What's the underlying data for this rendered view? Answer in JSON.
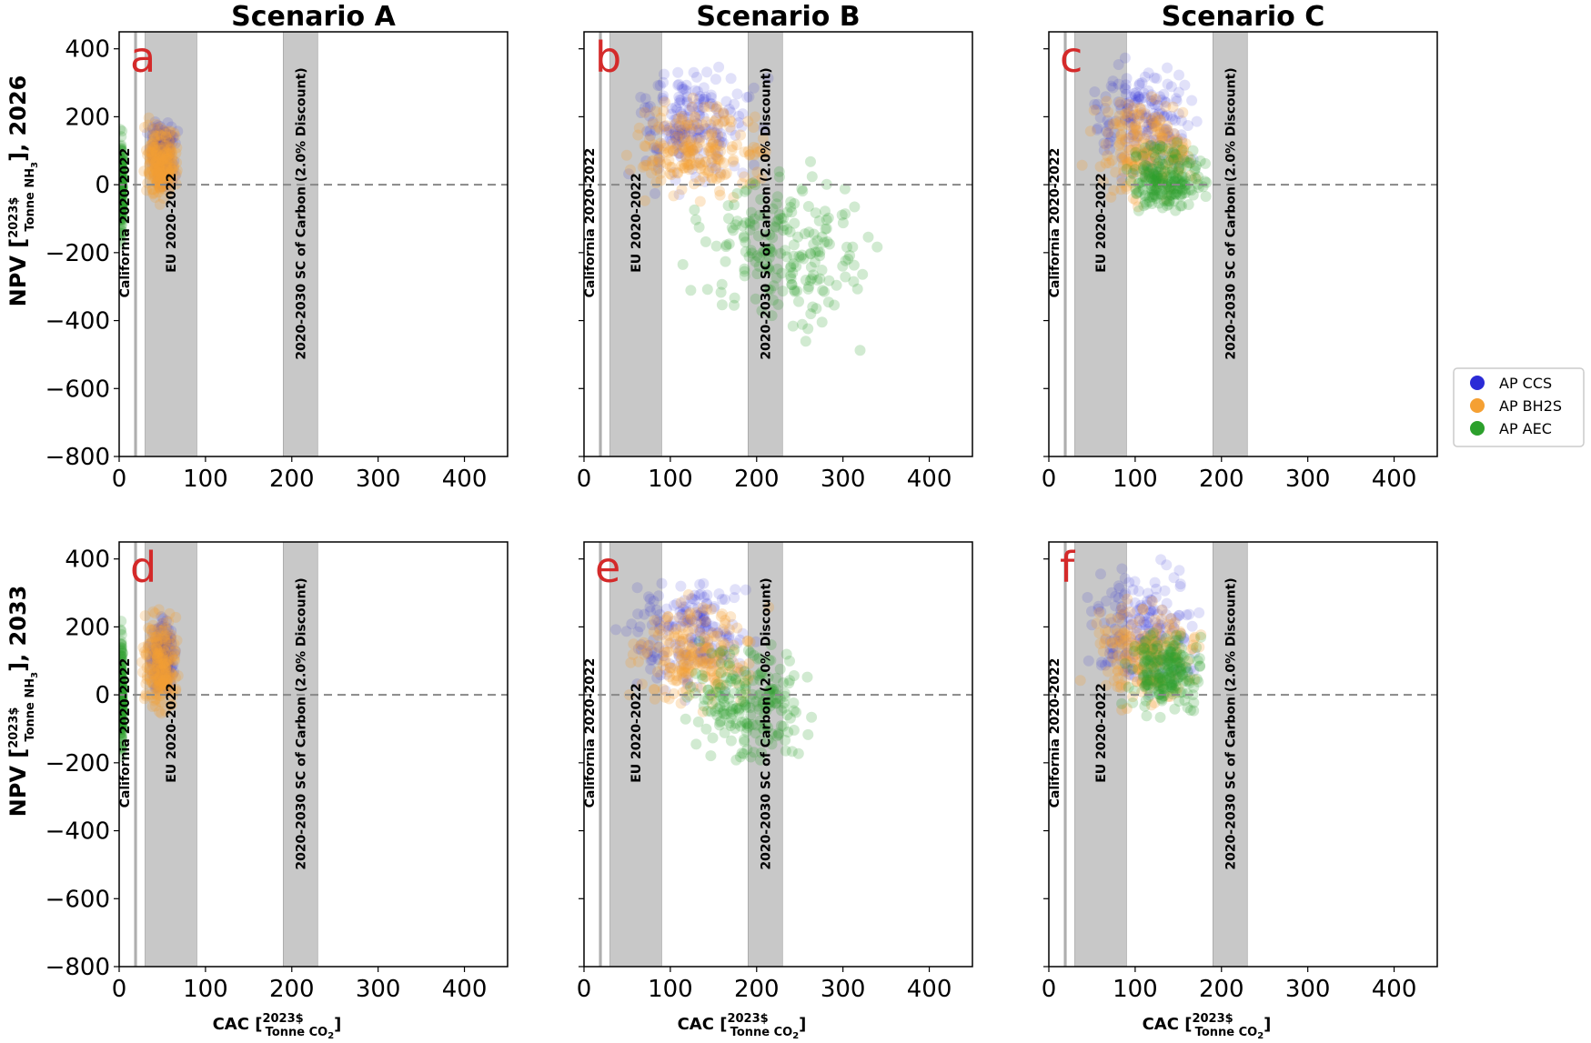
{
  "colors": {
    "AP CCS": "#2b2bd6",
    "AP BH2S": "#f5a033",
    "AP AEC": "#2ca02c",
    "band": "#c8c8c8",
    "letter": "#d42a2a"
  },
  "figure": {
    "column_titles": [
      "Scenario A",
      "Scenario B",
      "Scenario C"
    ],
    "row_ylabels": [
      {
        "prefix": "NPV [",
        "num": "2023$",
        "den": "Tonne NH",
        "den_sub": "3",
        "suffix": "],  2026"
      },
      {
        "prefix": "NPV [",
        "num": "2023$",
        "den": "Tonne NH",
        "den_sub": "3",
        "suffix": "],  2033"
      }
    ],
    "xlabel": {
      "prefix": "CAC [",
      "num": "2023$",
      "den": "Tonne CO",
      "den_sub": "2",
      "suffix": "]"
    },
    "legend": {
      "placement": "right",
      "entries": [
        {
          "label": "AP CCS",
          "color": "#2b2bd6"
        },
        {
          "label": "AP BH2S",
          "color": "#f5a033"
        },
        {
          "label": "AP AEC",
          "color": "#2ca02c"
        }
      ]
    }
  },
  "chart_data": {
    "type": "scatter",
    "xlim": [
      0,
      450
    ],
    "ylim": [
      -800,
      450
    ],
    "xticks": [
      0,
      100,
      200,
      300,
      400
    ],
    "yticks": [
      400,
      200,
      0,
      -200,
      -400,
      -600,
      -800
    ],
    "xtick_labels": [
      "0",
      "100",
      "200",
      "300",
      "400"
    ],
    "ytick_labels": [
      "400",
      "200",
      "0",
      "−200",
      "−400",
      "−600",
      "−800"
    ],
    "reference_line_y": 0,
    "bands": [
      {
        "name": "California 2020-2022",
        "x0": 18,
        "x1": 20
      },
      {
        "name": "EU 2020-2022",
        "x0": 30,
        "x1": 90
      },
      {
        "name": "2020-2030 SC of Carbon (2.0% Discount)",
        "x0": 190,
        "x1": 230
      }
    ],
    "panels": [
      {
        "letter": "a",
        "row": 0,
        "col": 0,
        "series": [
          {
            "name": "AP CCS",
            "cloud": {
              "x": [
                30,
                70
              ],
              "y": [
                -40,
                230
              ]
            }
          },
          {
            "name": "AP BH2S",
            "cloud": {
              "x": [
                22,
                75
              ],
              "y": [
                -90,
                220
              ]
            }
          },
          {
            "name": "AP AEC",
            "cloud": {
              "x": [
                0,
                5
              ],
              "y": [
                -200,
                190
              ]
            }
          }
        ]
      },
      {
        "letter": "b",
        "row": 0,
        "col": 1,
        "series": [
          {
            "name": "AP CCS",
            "cloud": {
              "x": [
                30,
                220
              ],
              "y": [
                -60,
                410
              ]
            }
          },
          {
            "name": "AP BH2S",
            "cloud": {
              "x": [
                28,
                230
              ],
              "y": [
                -90,
                300
              ]
            }
          },
          {
            "name": "AP AEC",
            "cloud": {
              "x": [
                100,
                360
              ],
              "y": [
                -520,
                120
              ]
            }
          }
        ]
      },
      {
        "letter": "c",
        "row": 0,
        "col": 2,
        "series": [
          {
            "name": "AP CCS",
            "cloud": {
              "x": [
                30,
                190
              ],
              "y": [
                -60,
                420
              ]
            }
          },
          {
            "name": "AP BH2S",
            "cloud": {
              "x": [
                28,
                195
              ],
              "y": [
                -90,
                300
              ]
            }
          },
          {
            "name": "AP AEC",
            "cloud": {
              "x": [
                80,
                190
              ],
              "y": [
                -130,
                160
              ]
            }
          }
        ]
      },
      {
        "letter": "d",
        "row": 1,
        "col": 0,
        "series": [
          {
            "name": "AP CCS",
            "cloud": {
              "x": [
                30,
                70
              ],
              "y": [
                -40,
                260
              ]
            }
          },
          {
            "name": "AP BH2S",
            "cloud": {
              "x": [
                22,
                75
              ],
              "y": [
                -100,
                280
              ]
            }
          },
          {
            "name": "AP AEC",
            "cloud": {
              "x": [
                0,
                5
              ],
              "y": [
                -220,
                230
              ]
            }
          }
        ]
      },
      {
        "letter": "e",
        "row": 1,
        "col": 1,
        "series": [
          {
            "name": "AP CCS",
            "cloud": {
              "x": [
                30,
                220
              ],
              "y": [
                -50,
                430
              ]
            }
          },
          {
            "name": "AP BH2S",
            "cloud": {
              "x": [
                28,
                230
              ],
              "y": [
                -90,
                320
              ]
            }
          },
          {
            "name": "AP AEC",
            "cloud": {
              "x": [
                100,
                280
              ],
              "y": [
                -260,
                210
              ]
            }
          }
        ]
      },
      {
        "letter": "f",
        "row": 1,
        "col": 2,
        "series": [
          {
            "name": "AP CCS",
            "cloud": {
              "x": [
                30,
                190
              ],
              "y": [
                -50,
                430
              ]
            }
          },
          {
            "name": "AP BH2S",
            "cloud": {
              "x": [
                28,
                195
              ],
              "y": [
                -90,
                310
              ]
            }
          },
          {
            "name": "AP AEC",
            "cloud": {
              "x": [
                80,
                190
              ],
              "y": [
                -90,
                220
              ]
            }
          }
        ]
      }
    ]
  }
}
